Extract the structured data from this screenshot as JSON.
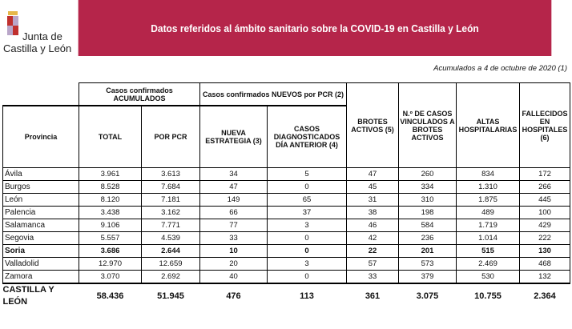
{
  "logo": {
    "line1": "Junta de",
    "line2": "Castilla y León"
  },
  "banner": {
    "title": "Datos referidos al ámbito sanitario sobre la COVID-19 en Castilla y León",
    "color": "#b5254a"
  },
  "note": "Acumulados a 4 de octubre de 2020 (1)",
  "table": {
    "group_headers": {
      "acumulados": "Casos confirmados ACUMULADOS",
      "nuevos": "Casos confirmados NUEVOS por PCR (2)"
    },
    "columns": [
      "Provincia",
      "TOTAL",
      "POR PCR",
      "NUEVA ESTRATEGIA (3)",
      "CASOS DIAGNOSTICADOS DÍA ANTERIOR (4)",
      "BROTES ACTIVOS (5)",
      "N.º DE CASOS VINCULADOS A BROTES ACTIVOS",
      "ALTAS HOSPITALARIAS",
      "FALLECIDOS EN HOSPITALES (6)"
    ],
    "rows": [
      [
        "Ávila",
        "3.961",
        "3.613",
        "34",
        "5",
        "47",
        "260",
        "834",
        "172"
      ],
      [
        "Burgos",
        "8.528",
        "7.684",
        "47",
        "0",
        "45",
        "334",
        "1.310",
        "266"
      ],
      [
        "León",
        "8.120",
        "7.181",
        "149",
        "65",
        "31",
        "310",
        "1.875",
        "445"
      ],
      [
        "Palencia",
        "3.438",
        "3.162",
        "66",
        "37",
        "38",
        "198",
        "489",
        "100"
      ],
      [
        "Salamanca",
        "9.106",
        "7.771",
        "77",
        "3",
        "46",
        "584",
        "1.719",
        "429"
      ],
      [
        "Segovia",
        "5.557",
        "4.539",
        "33",
        "0",
        "42",
        "236",
        "1.014",
        "222"
      ],
      [
        "Soria",
        "3.686",
        "2.644",
        "10",
        "0",
        "22",
        "201",
        "515",
        "130"
      ],
      [
        "Valladolid",
        "12.970",
        "12.659",
        "20",
        "3",
        "57",
        "573",
        "2.469",
        "468"
      ],
      [
        "Zamora",
        "3.070",
        "2.692",
        "40",
        "0",
        "33",
        "379",
        "530",
        "132"
      ]
    ],
    "bold_row": "Soria",
    "total": [
      "CASTILLA Y LEÓN",
      "58.436",
      "51.945",
      "476",
      "113",
      "361",
      "3.075",
      "10.755",
      "2.364"
    ]
  }
}
